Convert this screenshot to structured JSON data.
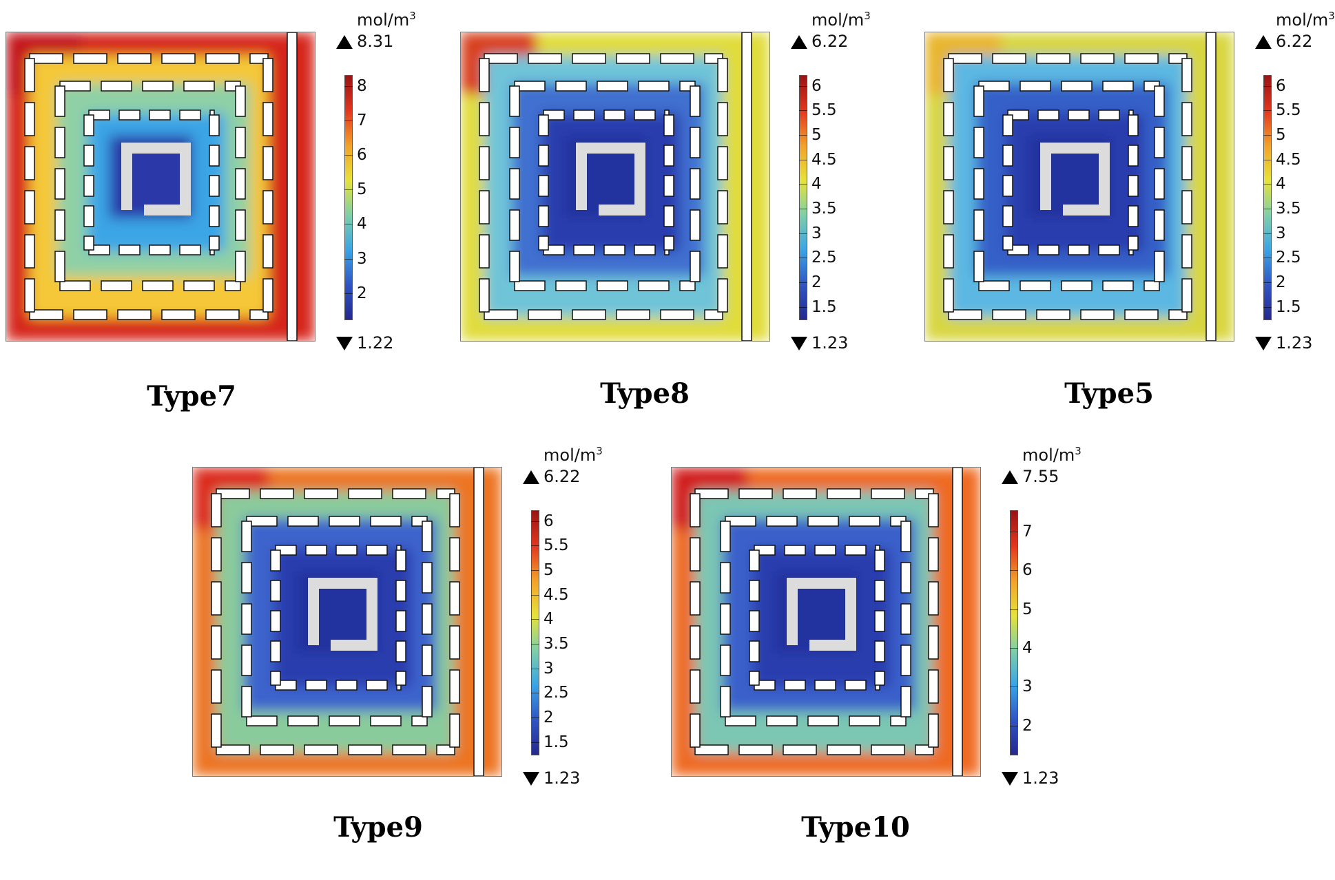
{
  "panels": [
    {
      "id": "type7",
      "caption": "Type7",
      "unit": "mol/m",
      "unit_exp": "3",
      "max": "8.31",
      "min": "1.22",
      "ticks": [
        "2",
        "3",
        "4",
        "5",
        "6",
        "7",
        "8"
      ],
      "tick_values": [
        2,
        3,
        4,
        5,
        6,
        7,
        8
      ],
      "range": [
        1.22,
        8.31
      ],
      "field": {
        "outer": "#d6261f",
        "ring1": "#f4c838",
        "ring2": "#8fd0a6",
        "ring3": "#3aa5e6",
        "core": "#2a39a8",
        "corner": "#c4161e"
      }
    },
    {
      "id": "type8",
      "caption": "Type8",
      "unit": "mol/m",
      "unit_exp": "3",
      "max": "6.22",
      "min": "1.23",
      "ticks": [
        "1.5",
        "2",
        "2.5",
        "3",
        "3.5",
        "4",
        "4.5",
        "5",
        "5.5",
        "6"
      ],
      "tick_values": [
        1.5,
        2,
        2.5,
        3,
        3.5,
        4,
        4.5,
        5,
        5.5,
        6
      ],
      "range": [
        1.23,
        6.22
      ],
      "field": {
        "outer": "#e0dc3a",
        "ring1": "#6fc4d8",
        "ring2": "#3f6fd0",
        "ring3": "#2a3eae",
        "core": "#23329e",
        "corner": "#d8401e"
      }
    },
    {
      "id": "type5",
      "caption": "Type5",
      "unit": "mol/m",
      "unit_exp": "3",
      "max": "6.22",
      "min": "1.23",
      "ticks": [
        "1.5",
        "2",
        "2.5",
        "3",
        "3.5",
        "4",
        "4.5",
        "5",
        "5.5",
        "6"
      ],
      "tick_values": [
        1.5,
        2,
        2.5,
        3,
        3.5,
        4,
        4.5,
        5,
        5.5,
        6
      ],
      "range": [
        1.23,
        6.22
      ],
      "field": {
        "outer": "#d8d640",
        "ring1": "#5cb8e2",
        "ring2": "#3461c8",
        "ring3": "#2a3eae",
        "core": "#23329e",
        "corner": "#e8b52c"
      }
    },
    {
      "id": "type9",
      "caption": "Type9",
      "unit": "mol/m",
      "unit_exp": "3",
      "max": "6.22",
      "min": "1.23",
      "ticks": [
        "1.5",
        "2",
        "2.5",
        "3",
        "3.5",
        "4",
        "4.5",
        "5",
        "5.5",
        "6"
      ],
      "tick_values": [
        1.5,
        2,
        2.5,
        3,
        3.5,
        4,
        4.5,
        5,
        5.5,
        6
      ],
      "range": [
        1.23,
        6.22
      ],
      "field": {
        "outer": "#ec7424",
        "ring1": "#8acb9c",
        "ring2": "#3c64cc",
        "ring3": "#2a3eae",
        "core": "#23329e",
        "corner": "#dc2a1e"
      }
    },
    {
      "id": "type10",
      "caption": "Type10",
      "unit": "mol/m",
      "unit_exp": "3",
      "max": "7.55",
      "min": "1.23",
      "ticks": [
        "2",
        "3",
        "4",
        "5",
        "6",
        "7"
      ],
      "tick_values": [
        2,
        3,
        4,
        5,
        6,
        7
      ],
      "range": [
        1.23,
        7.55
      ],
      "field": {
        "outer": "#ee6a22",
        "ring1": "#7cc6b4",
        "ring2": "#3a60ca",
        "ring3": "#2a3eae",
        "core": "#23329e",
        "corner": "#d11f1e"
      }
    }
  ],
  "colormap": [
    "#25288f",
    "#2f55c4",
    "#3aa4e6",
    "#7fcfa8",
    "#e6e23a",
    "#f2a12a",
    "#e2361f",
    "#9a1414"
  ]
}
